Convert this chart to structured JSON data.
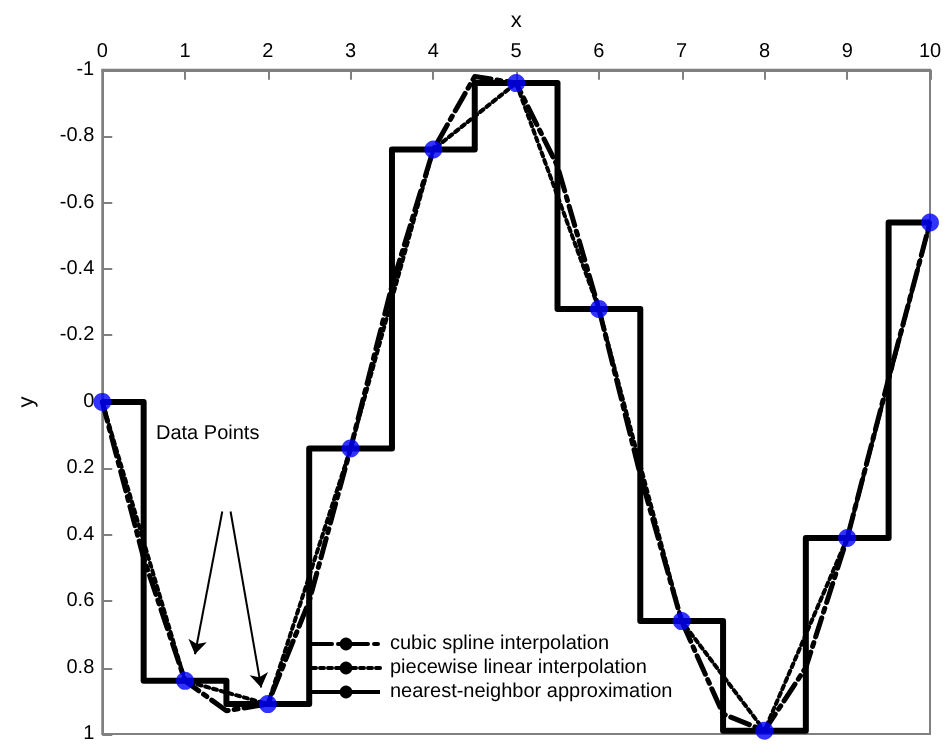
{
  "chart_data": {
    "type": "line",
    "xlabel": "x",
    "ylabel": "y",
    "xlim": [
      0,
      10
    ],
    "xticks": [
      0,
      1,
      2,
      3,
      4,
      5,
      6,
      7,
      8,
      9,
      10
    ],
    "ylim": [
      1,
      -1
    ],
    "yticks": [
      -1,
      -0.8,
      -0.6,
      -0.4,
      -0.2,
      0,
      0.2,
      0.4,
      0.6,
      0.8,
      1
    ],
    "grid": false,
    "legend": "bottom",
    "annotations": [
      "Data Points"
    ],
    "series": [
      {
        "name": "cubic spline interpolation",
        "type": "line",
        "line_style": "dashdot",
        "marker": "none",
        "color": "#000000",
        "x": [
          0,
          0.5,
          1,
          1.5,
          2,
          2.5,
          3,
          3.5,
          4,
          4.5,
          5,
          5.5,
          6,
          6.5,
          7,
          7.5,
          8,
          8.5,
          9,
          9.5,
          10
        ],
        "values": [
          0,
          0.47,
          0.84,
          0.93,
          0.91,
          0.6,
          0.14,
          -0.35,
          -0.76,
          -0.98,
          -0.96,
          -0.71,
          -0.28,
          0.22,
          0.66,
          0.94,
          0.99,
          0.8,
          0.41,
          -0.07,
          -0.54
        ]
      },
      {
        "name": "piecewise linear interpolation",
        "type": "line",
        "line_style": "dotted",
        "marker": "none",
        "color": "#000000",
        "x": [
          0,
          1,
          2,
          3,
          4,
          5,
          6,
          7,
          8,
          9,
          10
        ],
        "values": [
          0,
          0.84,
          0.91,
          0.14,
          -0.76,
          -0.96,
          -0.28,
          0.66,
          0.99,
          0.41,
          -0.54
        ]
      },
      {
        "name": "nearest-neighbor approximation",
        "type": "step",
        "line_style": "solid",
        "marker": "none",
        "color": "#000000",
        "x": [
          0,
          1,
          2,
          3,
          4,
          5,
          6,
          7,
          8,
          9,
          10
        ],
        "values": [
          0,
          0.84,
          0.91,
          0.14,
          -0.76,
          -0.96,
          -0.28,
          0.66,
          0.99,
          0.41,
          -0.54
        ]
      },
      {
        "type": "scatter",
        "marker": "circle",
        "color": "#0000ff",
        "x": [
          0,
          1,
          2,
          3,
          4,
          5,
          6,
          7,
          8,
          9,
          10
        ],
        "values": [
          0,
          0.84,
          0.91,
          0.14,
          -0.76,
          -0.96,
          -0.28,
          0.66,
          0.99,
          0.41,
          -0.54
        ]
      }
    ]
  }
}
